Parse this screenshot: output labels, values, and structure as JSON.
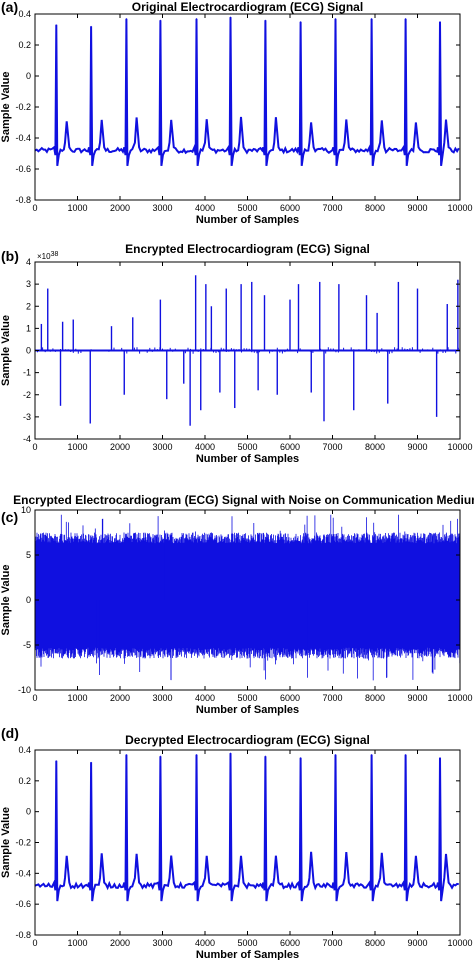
{
  "figure": {
    "panel_labels": [
      "(a)",
      "(b)",
      "(c)",
      "(d)"
    ]
  },
  "chart_data": [
    {
      "type": "line",
      "panel": "(a)",
      "title": "Original Electrocardiogram (ECG) Signal",
      "xlabel": "Number of Samples",
      "ylabel": "Sample Value",
      "xlim": [
        0,
        10000
      ],
      "ylim": [
        -0.8,
        0.4
      ],
      "xticks": [
        0,
        1000,
        2000,
        3000,
        4000,
        5000,
        6000,
        7000,
        8000,
        9000,
        10000
      ],
      "yticks": [
        -0.8,
        -0.6,
        -0.4,
        -0.2,
        0,
        0.2,
        0.4
      ],
      "series_color": "#1010e0",
      "baseline": -0.48,
      "trough": -0.58,
      "r_peaks": [
        {
          "x": 500,
          "y": 0.33
        },
        {
          "x": 1320,
          "y": 0.32
        },
        {
          "x": 2150,
          "y": 0.37
        },
        {
          "x": 2950,
          "y": 0.36
        },
        {
          "x": 3800,
          "y": 0.37
        },
        {
          "x": 4600,
          "y": 0.38
        },
        {
          "x": 5420,
          "y": 0.36
        },
        {
          "x": 6250,
          "y": 0.35
        },
        {
          "x": 7070,
          "y": 0.37
        },
        {
          "x": 7920,
          "y": 0.37
        },
        {
          "x": 8720,
          "y": 0.37
        },
        {
          "x": 9530,
          "y": 0.35
        }
      ],
      "t_wave_peak": -0.28
    },
    {
      "type": "line",
      "panel": "(b)",
      "title": "Encrypted Electrocardiogram (ECG) Signal",
      "xlabel": "Number of Samples",
      "ylabel": "Sample Value",
      "y_multiplier": "×10",
      "y_exponent": "38",
      "xlim": [
        0,
        10000
      ],
      "ylim": [
        -4,
        4
      ],
      "xticks": [
        0,
        1000,
        2000,
        3000,
        4000,
        5000,
        6000,
        7000,
        8000,
        9000,
        10000
      ],
      "yticks": [
        -4,
        -3,
        -2,
        -1,
        0,
        1,
        2,
        3,
        4
      ],
      "series_color": "#1010e0",
      "spikes": [
        {
          "x": 150,
          "y": 1.2
        },
        {
          "x": 300,
          "y": 2.8
        },
        {
          "x": 600,
          "y": -2.5
        },
        {
          "x": 650,
          "y": 1.3
        },
        {
          "x": 900,
          "y": 1.4
        },
        {
          "x": 1300,
          "y": -3.3
        },
        {
          "x": 1800,
          "y": 1.1
        },
        {
          "x": 2100,
          "y": -2.0
        },
        {
          "x": 2300,
          "y": 1.5
        },
        {
          "x": 2950,
          "y": 2.3
        },
        {
          "x": 3100,
          "y": -2.2
        },
        {
          "x": 3500,
          "y": -1.5
        },
        {
          "x": 3650,
          "y": -3.4
        },
        {
          "x": 3780,
          "y": 3.4
        },
        {
          "x": 3900,
          "y": -2.7
        },
        {
          "x": 4020,
          "y": 3.0
        },
        {
          "x": 4150,
          "y": 2.0
        },
        {
          "x": 4350,
          "y": -1.9
        },
        {
          "x": 4500,
          "y": 2.8
        },
        {
          "x": 4700,
          "y": -2.6
        },
        {
          "x": 4850,
          "y": 3.0
        },
        {
          "x": 5100,
          "y": 3.1
        },
        {
          "x": 5250,
          "y": -1.8
        },
        {
          "x": 5400,
          "y": 2.5
        },
        {
          "x": 5700,
          "y": -2.0
        },
        {
          "x": 6000,
          "y": 2.3
        },
        {
          "x": 6200,
          "y": 3.0
        },
        {
          "x": 6500,
          "y": -1.9
        },
        {
          "x": 6700,
          "y": 3.1
        },
        {
          "x": 6800,
          "y": -3.2
        },
        {
          "x": 7150,
          "y": 3.0
        },
        {
          "x": 7500,
          "y": -2.7
        },
        {
          "x": 7800,
          "y": 2.5
        },
        {
          "x": 8050,
          "y": 1.7
        },
        {
          "x": 8300,
          "y": -2.4
        },
        {
          "x": 8550,
          "y": 3.1
        },
        {
          "x": 9000,
          "y": 2.8
        },
        {
          "x": 9450,
          "y": -3.0
        },
        {
          "x": 9700,
          "y": 2.1
        },
        {
          "x": 9950,
          "y": 3.2
        }
      ]
    },
    {
      "type": "line",
      "panel": "(c)",
      "title": "Encrypted Electrocardiogram (ECG) Signal with Noise on Communication Medium",
      "xlabel": "Number of Samples",
      "ylabel": "Sample Value",
      "xlim": [
        0,
        10000
      ],
      "ylim": [
        -10,
        10
      ],
      "xticks": [
        0,
        1000,
        2000,
        3000,
        4000,
        5000,
        6000,
        7000,
        8000,
        9000,
        10000
      ],
      "yticks": [
        -10,
        -5,
        0,
        5,
        10
      ],
      "series_color": "#1010e0",
      "band": [
        -6.5,
        7.5
      ],
      "extremes": [
        -9,
        9.5
      ]
    },
    {
      "type": "line",
      "panel": "(d)",
      "title": "Decrypted Electrocardiogram (ECG) Signal",
      "xlabel": "Number of Samples",
      "ylabel": "Sample Value",
      "xlim": [
        0,
        10000
      ],
      "ylim": [
        -0.8,
        0.4
      ],
      "xticks": [
        0,
        1000,
        2000,
        3000,
        4000,
        5000,
        6000,
        7000,
        8000,
        9000,
        10000
      ],
      "yticks": [
        -0.8,
        -0.6,
        -0.4,
        -0.2,
        0,
        0.2,
        0.4
      ],
      "series_color": "#1010e0",
      "baseline": -0.48,
      "trough": -0.58,
      "r_peaks": [
        {
          "x": 500,
          "y": 0.33
        },
        {
          "x": 1320,
          "y": 0.32
        },
        {
          "x": 2150,
          "y": 0.37
        },
        {
          "x": 2950,
          "y": 0.36
        },
        {
          "x": 3800,
          "y": 0.37
        },
        {
          "x": 4600,
          "y": 0.38
        },
        {
          "x": 5420,
          "y": 0.36
        },
        {
          "x": 6250,
          "y": 0.35
        },
        {
          "x": 7070,
          "y": 0.37
        },
        {
          "x": 7920,
          "y": 0.37
        },
        {
          "x": 8720,
          "y": 0.37
        },
        {
          "x": 9530,
          "y": 0.35
        }
      ],
      "t_wave_peak": -0.28
    }
  ]
}
